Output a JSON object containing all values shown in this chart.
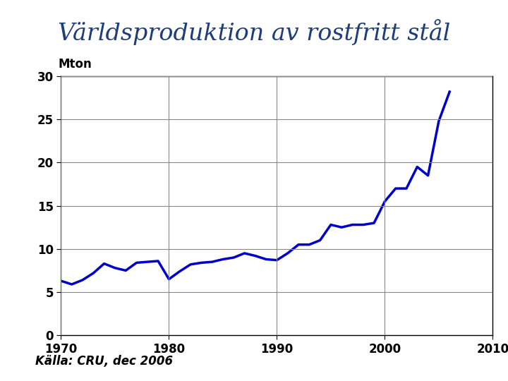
{
  "title": "Världsproduktion av rostfritt stål",
  "ylabel": "Mton",
  "source": "Källa: CRU, dec 2006",
  "title_color": "#1f3d7a",
  "line_color": "#0000cc",
  "background_color": "#ffffff",
  "grid_color": "#888888",
  "xlim": [
    1970,
    2010
  ],
  "ylim": [
    0,
    30
  ],
  "yticks": [
    0,
    5,
    10,
    15,
    20,
    25,
    30
  ],
  "xticks": [
    1970,
    1980,
    1990,
    2000,
    2010
  ],
  "years": [
    1970,
    1971,
    1972,
    1973,
    1974,
    1975,
    1976,
    1977,
    1978,
    1979,
    1980,
    1981,
    1982,
    1983,
    1984,
    1985,
    1986,
    1987,
    1988,
    1989,
    1990,
    1991,
    1992,
    1993,
    1994,
    1995,
    1996,
    1997,
    1998,
    1999,
    2000,
    2001,
    2002,
    2003,
    2004,
    2005,
    2006
  ],
  "values": [
    6.3,
    5.9,
    6.4,
    7.2,
    8.3,
    7.8,
    7.5,
    8.4,
    8.5,
    8.6,
    6.5,
    7.4,
    8.2,
    8.4,
    8.5,
    8.8,
    9.0,
    9.5,
    9.2,
    8.8,
    8.7,
    9.5,
    10.5,
    10.5,
    11.0,
    12.8,
    12.5,
    12.8,
    12.8,
    13.0,
    15.5,
    17.0,
    17.0,
    19.5,
    18.5,
    24.8,
    28.2
  ],
  "title_fontsize": 24,
  "ylabel_fontsize": 12,
  "tick_fontsize": 12,
  "source_fontsize": 12,
  "line_width": 2.5
}
